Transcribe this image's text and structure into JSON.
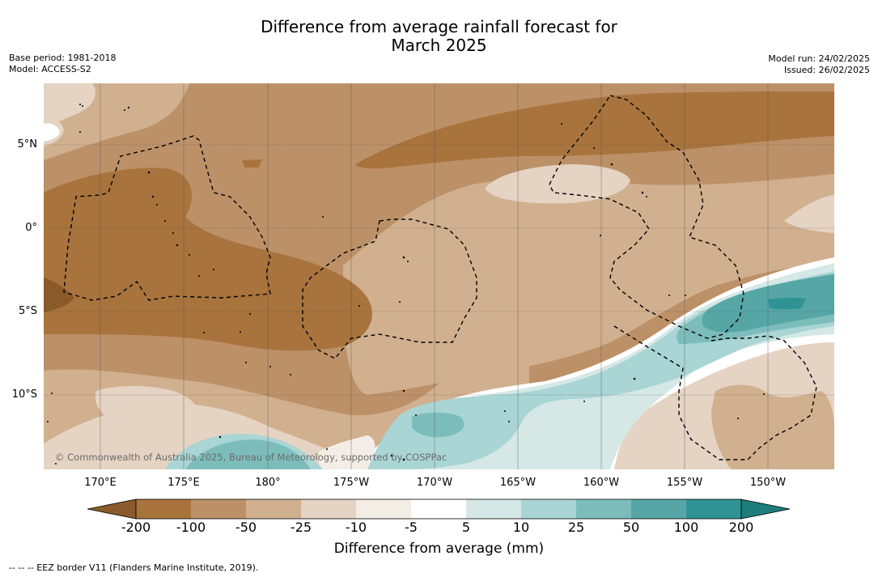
{
  "header": {
    "title_line1": "Difference from average rainfall forecast for",
    "title_line2": "March 2025",
    "base_period": "Base period: 1981-2018",
    "model": "Model: ACCESS-S2",
    "model_run": "Model run: 24/02/2025",
    "issued": "Issued: 26/02/2025"
  },
  "map": {
    "lat_labels": [
      "5°N",
      "0°",
      "5°S",
      "10°S"
    ],
    "lon_labels": [
      "170°E",
      "175°E",
      "180°",
      "175°W",
      "170°W",
      "165°W",
      "160°W",
      "155°W",
      "150°W"
    ],
    "copyright": "© Commonwealth of Australia 2025, Bureau of Meteorology, supported by COSPPac",
    "colors": {
      "lt_-200": "#8a5a2b",
      "-200_-100": "#a8733d",
      "-100_-50": "#bc9168",
      "-50_-25": "#d1b08f",
      "-25_-10": "#e5d3c3",
      "-10_-5": "#f3ede6",
      "-5_5": "#ffffff",
      "5_10": "#d5e8e6",
      "10_25": "#a9d5d4",
      "25_50": "#7cbdbc",
      "50_100": "#56a6a6",
      "100_200": "#2f9393",
      "gt_200": "#1d7d7b"
    }
  },
  "colorbar": {
    "tick_labels": [
      "-200",
      "-100",
      "-50",
      "-25",
      "-10",
      "-5",
      "5",
      "10",
      "25",
      "50",
      "100",
      "200"
    ],
    "title": "Difference from average (mm)"
  },
  "footnote": "--  --  -- EEZ border V11 (Flanders Marine Institute, 2019)."
}
